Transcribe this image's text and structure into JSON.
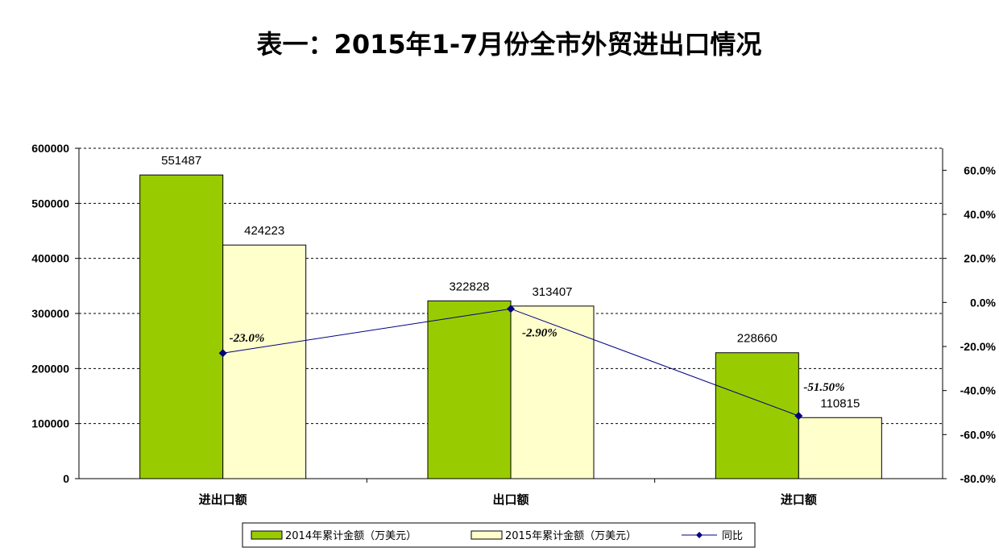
{
  "chart_data": {
    "type": "bar",
    "title": "表一：2015年1-7月份全市外贸进出口情况",
    "categories": [
      "进出口额",
      "出口额",
      "进口额"
    ],
    "series": [
      {
        "name": "2014年累计金额（万美元）",
        "type": "bar",
        "axis": "left",
        "color": "#99CC00",
        "values": [
          551487,
          322828,
          228660
        ]
      },
      {
        "name": "2015年累计金额（万美元）",
        "type": "bar",
        "axis": "left",
        "color": "#FFFFCC",
        "values": [
          424223,
          313407,
          110815
        ]
      },
      {
        "name": "同比",
        "type": "line",
        "axis": "right",
        "color": "#000080",
        "values": [
          -23.0,
          -2.9,
          -51.5
        ],
        "labels": [
          "-23.0%",
          "-2.90%",
          "-51.50%"
        ]
      }
    ],
    "y_left": {
      "min": 0,
      "max": 600000,
      "ticks": [
        "0",
        "100000",
        "200000",
        "300000",
        "400000",
        "500000",
        "600000"
      ]
    },
    "y_right": {
      "min": -80,
      "max": 70,
      "tick_values": [
        -80,
        -60,
        -40,
        -20,
        0,
        20,
        40,
        60
      ],
      "ticks": [
        "-80.0%",
        "-60.0%",
        "-40.0%",
        "-20.0%",
        "0.0%",
        "20.0%",
        "40.0%",
        "60.0%"
      ]
    },
    "grid": true,
    "legend_position": "bottom"
  }
}
